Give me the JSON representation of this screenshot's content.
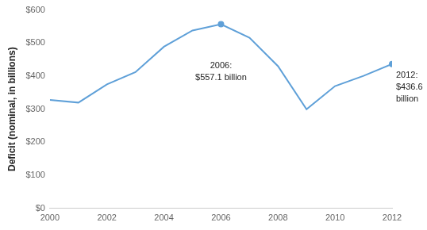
{
  "chart_data": {
    "type": "line",
    "y_label": "Deficit (nominal, in billions)",
    "x": [
      2000,
      2001,
      2002,
      2003,
      2004,
      2005,
      2006,
      2007,
      2008,
      2009,
      2010,
      2011,
      2012
    ],
    "values": [
      328,
      320,
      375,
      412,
      489,
      538,
      557.1,
      516,
      430,
      300,
      370,
      401,
      436.6
    ],
    "color": "#5fa0d8",
    "xlim": [
      2000,
      2012
    ],
    "xticks": [
      2000,
      2002,
      2004,
      2006,
      2008,
      2010,
      2012
    ],
    "ylim": [
      0,
      600
    ],
    "yticks": [
      {
        "value": 0,
        "label": "$0"
      },
      {
        "value": 100,
        "label": "$100"
      },
      {
        "value": 200,
        "label": "$200"
      },
      {
        "value": 300,
        "label": "$300"
      },
      {
        "value": 400,
        "label": "$400"
      },
      {
        "value": 500,
        "label": "$500"
      },
      {
        "value": 600,
        "label": "$600"
      }
    ],
    "grid": false,
    "annotations": [
      {
        "x": 2006,
        "y": 557.1,
        "text": [
          "2006:",
          "$557.1 billion"
        ]
      },
      {
        "x": 2012,
        "y": 436.6,
        "text": [
          "2012:",
          "$436.6",
          "billion"
        ]
      }
    ]
  }
}
